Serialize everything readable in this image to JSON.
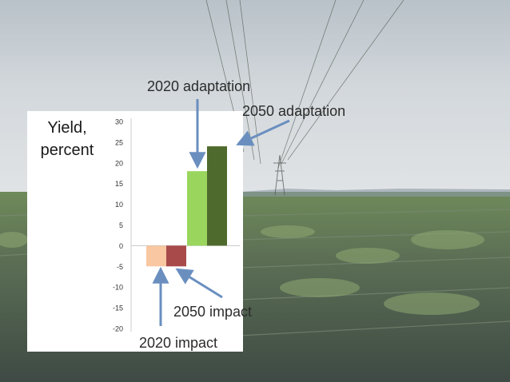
{
  "chart_data": {
    "type": "bar",
    "ylabel": [
      "Yield,",
      "percent"
    ],
    "ylim": [
      -20,
      30
    ],
    "yticks": [
      30,
      25,
      20,
      15,
      10,
      5,
      0,
      -5,
      -10,
      -15,
      -20
    ],
    "bars": [
      {
        "name": "2020 impact",
        "value": -5,
        "color": "#f9c7a1"
      },
      {
        "name": "2050 impact",
        "value": -5,
        "color": "#a84a4a"
      },
      {
        "name": "2020 adaptation",
        "value": 18,
        "color": "#9ad65e"
      },
      {
        "name": "2050 adaptation",
        "value": 24,
        "color": "#4e6b2d"
      }
    ],
    "annotations": [
      {
        "text": "2020 adaptation"
      },
      {
        "text": "2050 adaptation"
      },
      {
        "text": "2050 impact"
      },
      {
        "text": "2020 impact"
      }
    ]
  }
}
